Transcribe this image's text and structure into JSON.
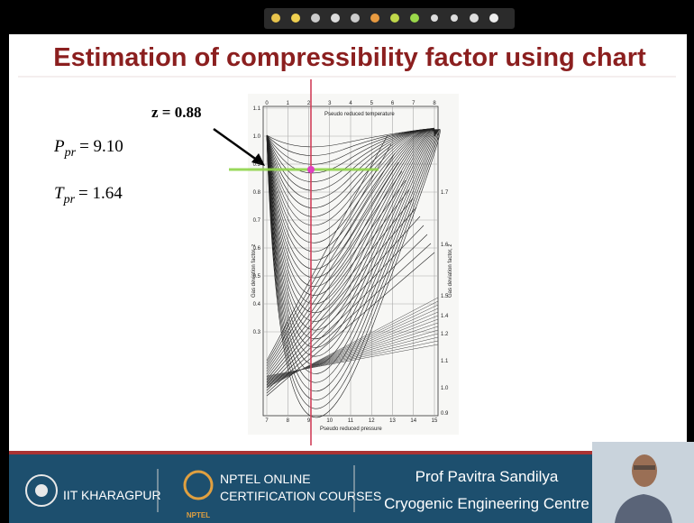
{
  "slide": {
    "title": "Estimation of compressibility factor using chart",
    "result": "z = 0.88",
    "pressure": {
      "symbol": "P",
      "subscript": "pr",
      "value": "= 9.10"
    },
    "temperature": {
      "symbol": "T",
      "subscript": "pr",
      "value": "= 1.64"
    },
    "chart_image": {
      "top_title": "Pseudo reduced temperature",
      "bottom_title": "Pseudo reduced pressure",
      "left_title": "Gas deviation factor, z",
      "right_title": "Gas deviation factor, z",
      "top_ticks": [
        "0",
        "1",
        "2",
        "3",
        "4",
        "5",
        "6",
        "7",
        "8"
      ],
      "bottom_ticks": [
        "7",
        "8",
        "9",
        "10",
        "11",
        "12",
        "13",
        "14",
        "15"
      ],
      "left_ticks": [
        "1.1",
        "1.0",
        "0.9",
        "0.8",
        "0.7",
        "0.6",
        "0.5",
        "0.4",
        "0.3"
      ],
      "right_ticks": [
        "1.7",
        "1.6",
        "1.5",
        "1.4",
        "1.2",
        "1.1",
        "1.0",
        "0.9"
      ]
    }
  },
  "footer": {
    "institute": "IIT KHARAGPUR",
    "nptel_line1": "NPTEL ONLINE",
    "nptel_line2": "CERTIFICATION COURSES",
    "nptel_badge": "NPTEL",
    "speaker": "Prof Pavitra Sandilya",
    "department": "Cryogenic Engineering Centre"
  }
}
